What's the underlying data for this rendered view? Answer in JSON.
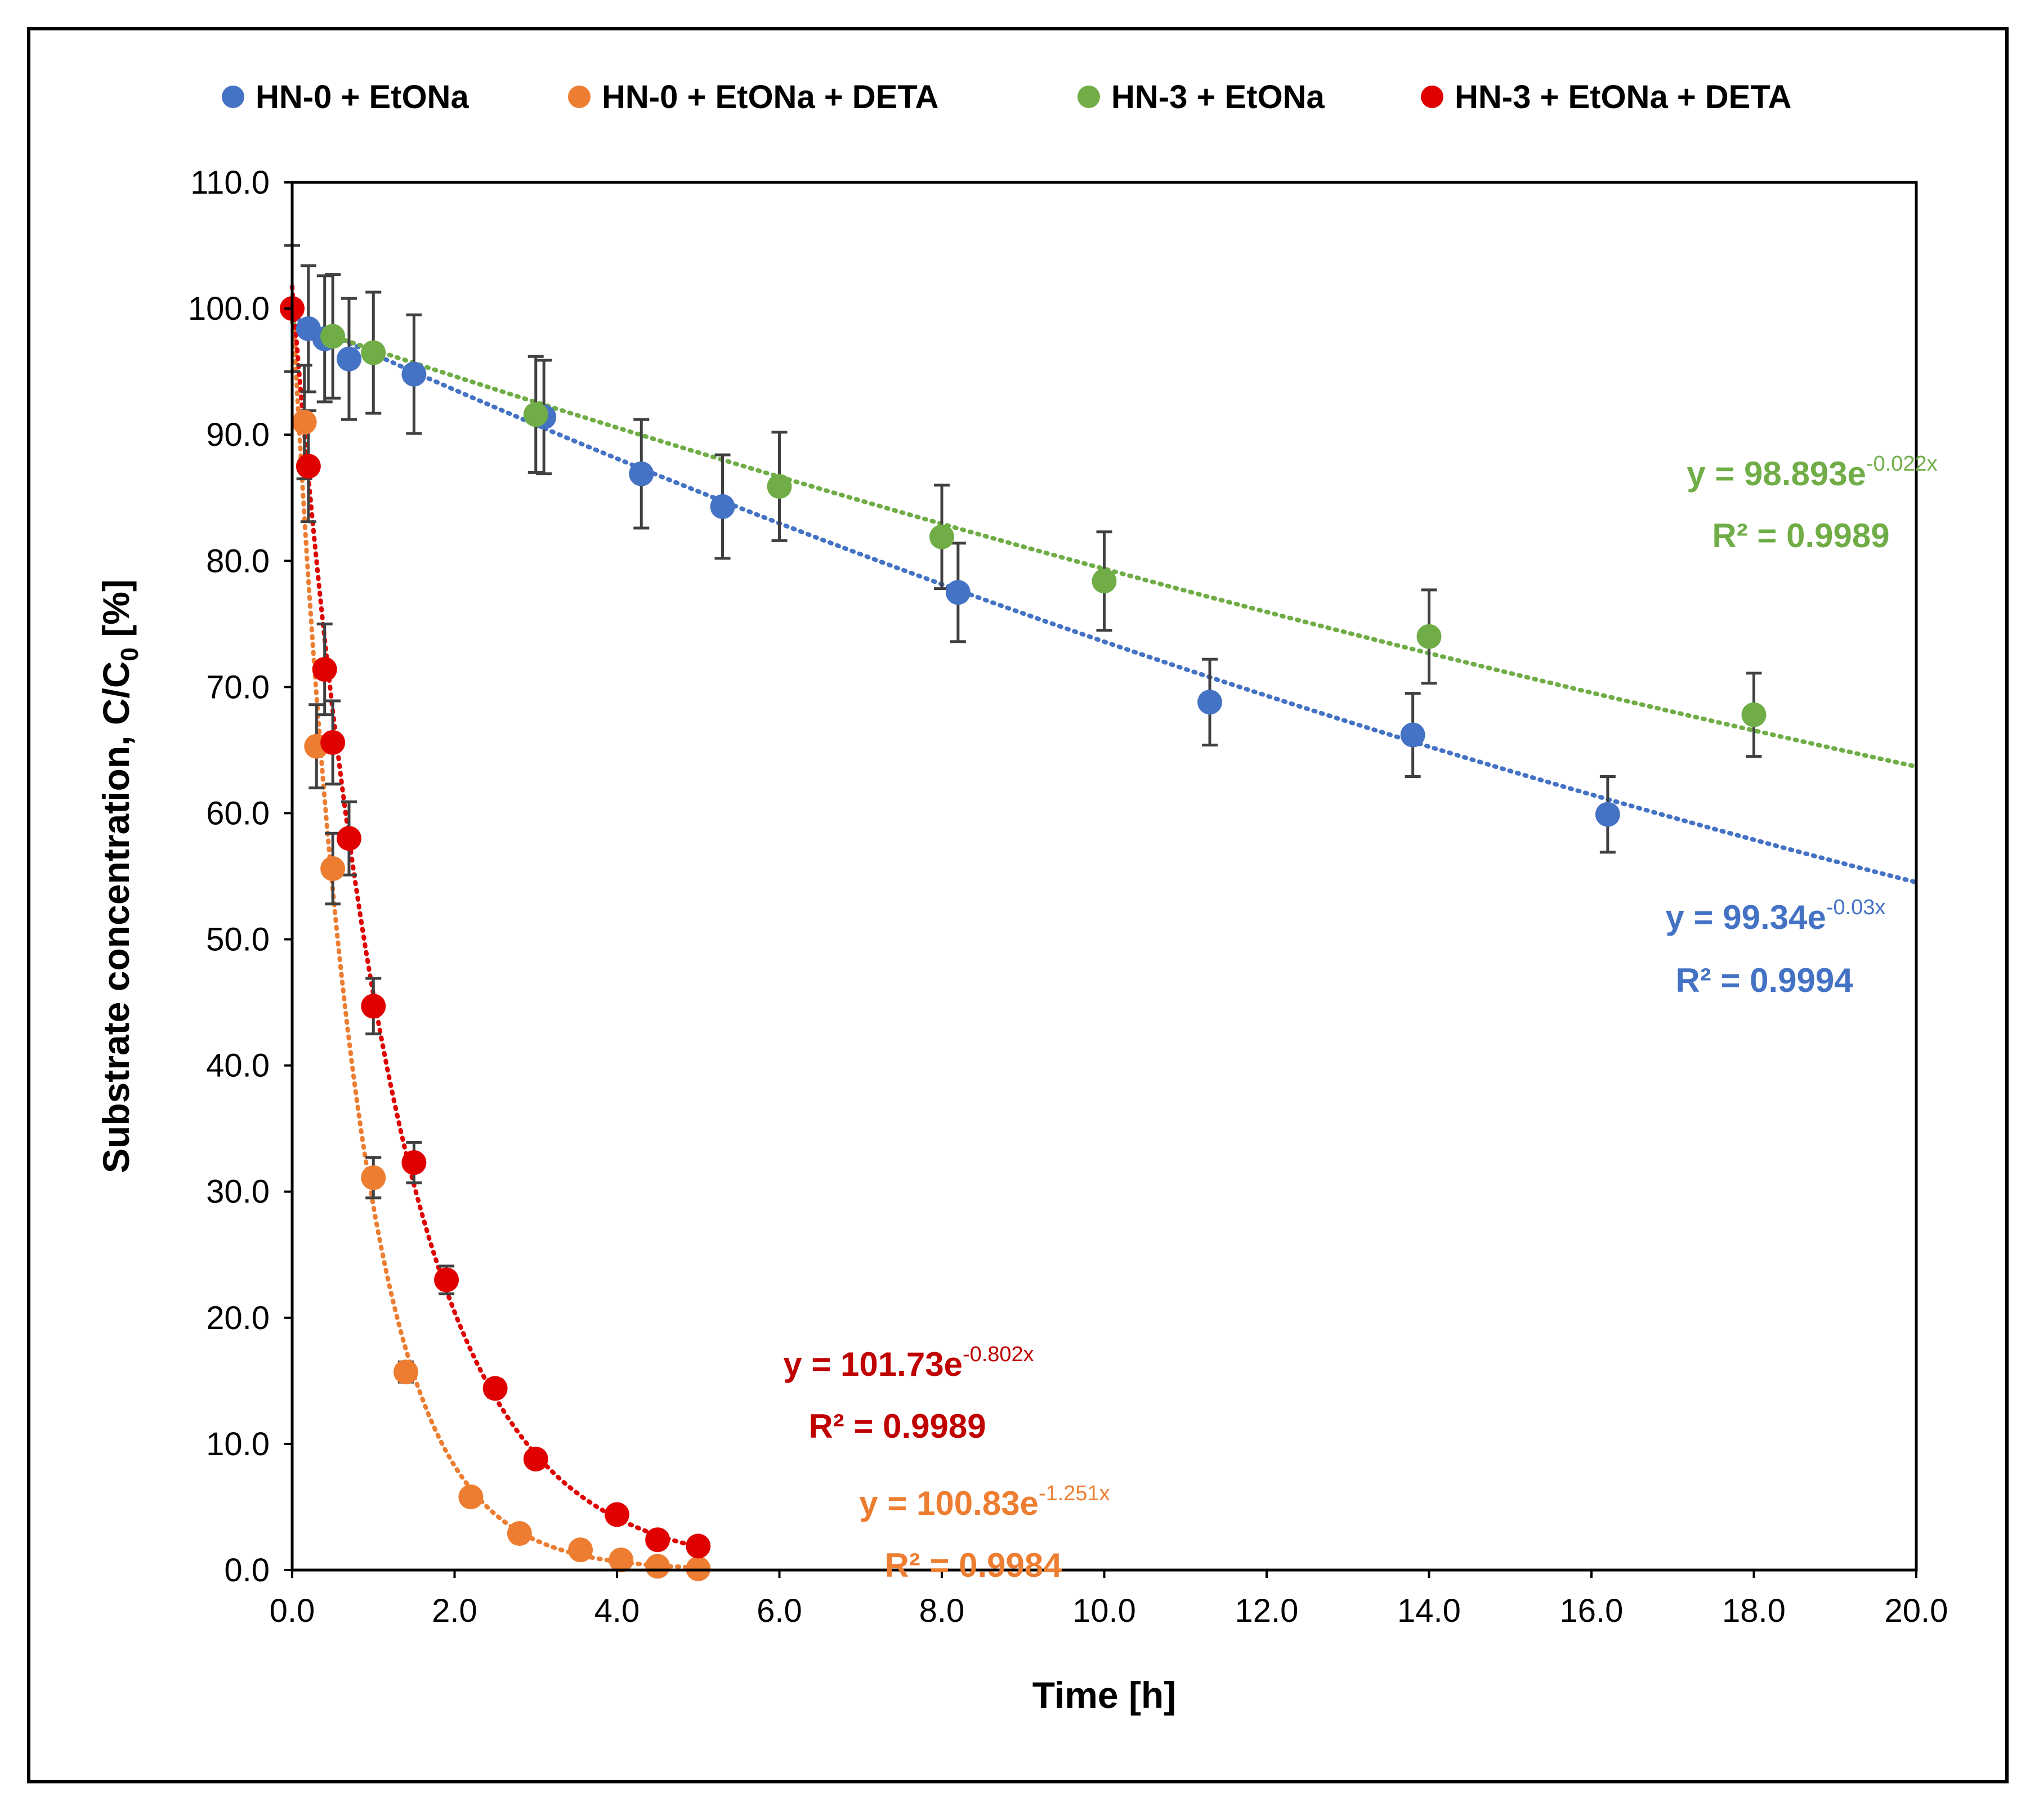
{
  "chart_data": {
    "type": "scatter",
    "title": "",
    "xlabel": "Time [h]",
    "ylabel": "Substrate concentration, C/C",
    "ylabel_sub": "0",
    "ylabel_unit": " [%]",
    "xlim": [
      0,
      20
    ],
    "ylim": [
      0,
      110
    ],
    "x_ticks": [
      0,
      2,
      4,
      6,
      8,
      10,
      12,
      14,
      16,
      18,
      20
    ],
    "y_ticks": [
      0,
      10,
      20,
      30,
      40,
      50,
      60,
      70,
      80,
      90,
      100,
      110
    ],
    "x_tick_labels": [
      "0.0",
      "2.0",
      "4.0",
      "6.0",
      "8.0",
      "10.0",
      "12.0",
      "14.0",
      "16.0",
      "18.0",
      "20.0"
    ],
    "y_tick_labels": [
      "0.0",
      "10.0",
      "20.0",
      "30.0",
      "40.0",
      "50.0",
      "60.0",
      "70.0",
      "80.0",
      "90.0",
      "100.0",
      "110.0"
    ],
    "grid": false,
    "legend_position": "top",
    "series": [
      {
        "name": "HN-0 + EtONa",
        "color": "#4472C4",
        "x": [
          0.2,
          0.4,
          0.7,
          1.5,
          3.1,
          4.3,
          5.3,
          8.2,
          11.3,
          13.8,
          16.2
        ],
        "y": [
          98.4,
          97.6,
          96.0,
          94.8,
          91.4,
          86.9,
          84.3,
          77.5,
          68.8,
          66.2,
          59.9
        ],
        "err": [
          5.0,
          5.0,
          4.8,
          4.7,
          4.5,
          4.3,
          4.1,
          3.9,
          3.4,
          3.3,
          3.0
        ],
        "fit": {
          "a": 99.34,
          "b": -0.03,
          "x_range": [
            0,
            20
          ]
        },
        "equation_prefix": "y = 99.34e",
        "equation_exponent": "-0.03x",
        "r2_label": "R² = 0.9994"
      },
      {
        "name": "HN-0 + EtONa + DETA",
        "color": "#ED7D31",
        "x": [
          0.15,
          0.3,
          0.5,
          1.0,
          1.4,
          2.2,
          2.8,
          3.55,
          4.05,
          4.5,
          5.0
        ],
        "y": [
          91.0,
          65.3,
          55.6,
          31.1,
          15.7,
          5.8,
          2.9,
          1.6,
          0.8,
          0.3,
          0.1
        ],
        "err": [
          4.5,
          3.3,
          2.8,
          1.6,
          0.8,
          0,
          0,
          0,
          0,
          0,
          0
        ],
        "fit": {
          "a": 100.83,
          "b": -1.251,
          "x_range": [
            0,
            5.05
          ]
        },
        "equation_prefix": "y = 100.83e",
        "equation_exponent": "-1.251x",
        "r2_label": "R² = 0.9984"
      },
      {
        "name": "HN-3 + EtONa",
        "color": "#70AD47",
        "x": [
          0.5,
          1.0,
          3.0,
          6.0,
          8.0,
          10.0,
          14.0,
          18.0
        ],
        "y": [
          97.8,
          96.5,
          91.6,
          85.9,
          81.9,
          78.4,
          74.0,
          67.8
        ],
        "err": [
          4.9,
          4.8,
          4.6,
          4.3,
          4.1,
          3.9,
          3.7,
          3.3
        ],
        "fit": {
          "a": 98.893,
          "b": -0.022,
          "x_range": [
            0,
            20
          ]
        },
        "equation_prefix": "y = 98.893e",
        "equation_exponent": "-0.022x",
        "r2_label": "R² = 0.9989"
      },
      {
        "name": "HN-3 + EtONa + DETA",
        "color": "#E00000",
        "x": [
          0.0,
          0.2,
          0.4,
          0.5,
          0.7,
          1.0,
          1.5,
          1.9,
          2.5,
          3.0,
          4.0,
          4.5,
          5.0
        ],
        "y": [
          100.0,
          87.5,
          71.4,
          65.6,
          58.0,
          44.7,
          32.3,
          23.0,
          14.4,
          8.8,
          4.4,
          2.4,
          1.9
        ],
        "err": [
          5.0,
          4.4,
          3.6,
          3.3,
          2.9,
          2.2,
          1.6,
          1.1,
          0.7,
          0,
          0,
          0,
          0
        ],
        "fit": {
          "a": 101.73,
          "b": -0.802,
          "x_range": [
            0,
            5.05
          ]
        },
        "equation_prefix": "y = 101.73e",
        "equation_exponent": "-0.802x",
        "r2_label": "R² = 0.9989"
      }
    ],
    "annotation_colors": {
      "HN-0 + EtONa": "#4472C4",
      "HN-0 + EtONa + DETA": "#ED7D31",
      "HN-3 + EtONa": "#70AD47",
      "HN-3 + EtONa + DETA": "#C00000"
    }
  }
}
